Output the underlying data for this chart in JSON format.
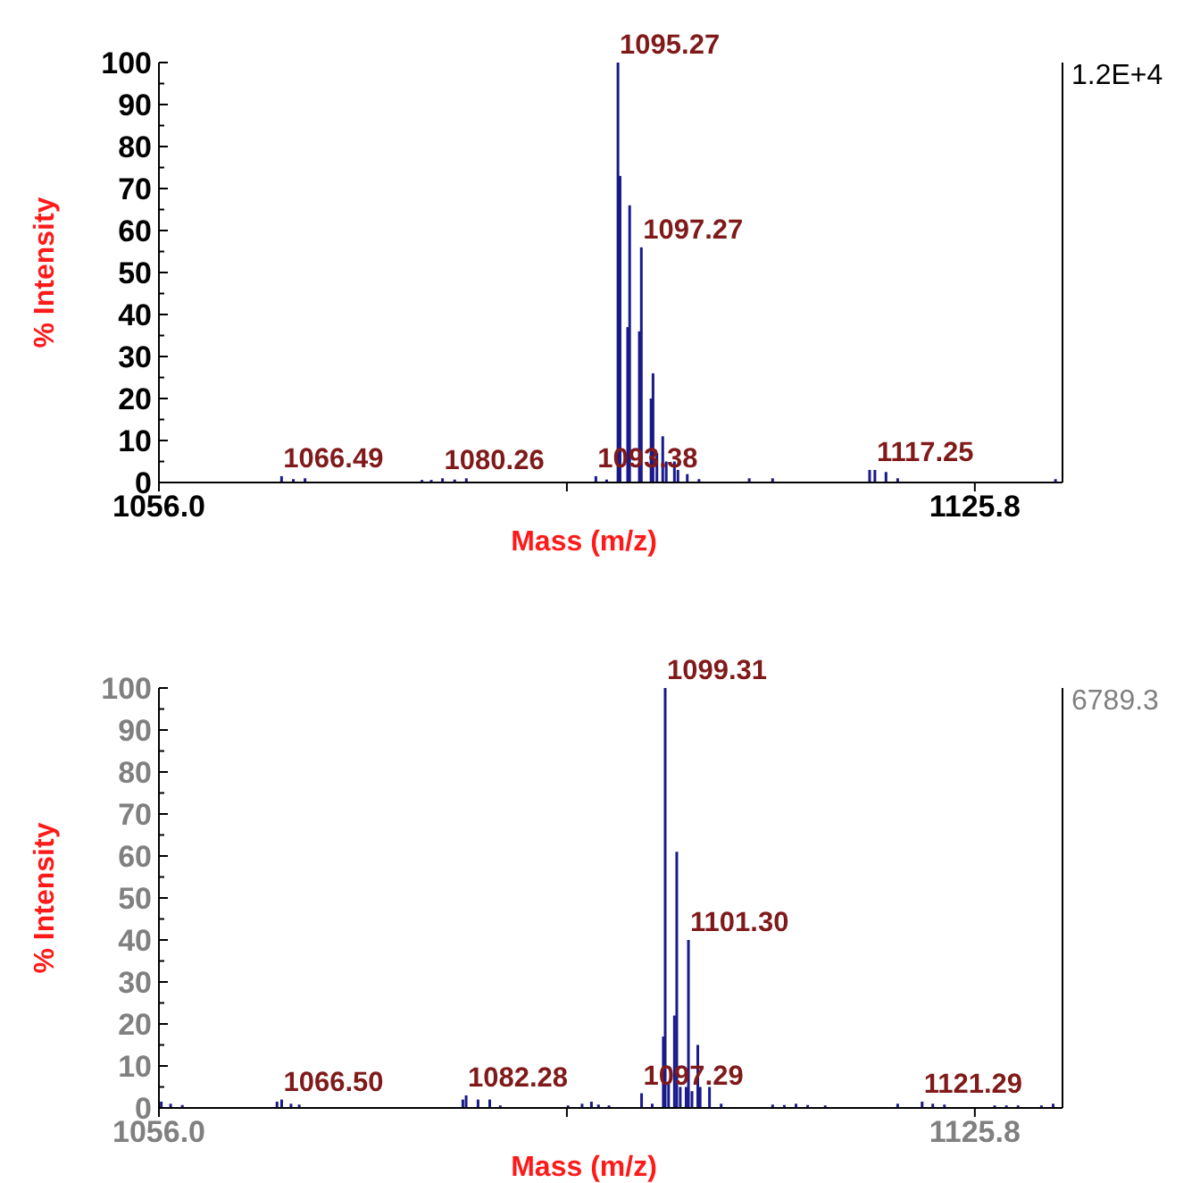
{
  "chart_data": [
    {
      "type": "bar",
      "xlabel": "Mass (m/z)",
      "ylabel": "% Intensity",
      "xlim": [
        1056.0,
        1133.3
      ],
      "ylim": [
        0,
        100
      ],
      "xticks": [
        {
          "value": 1056.0,
          "label": "1056.0"
        },
        {
          "value": 1090.9,
          "label": null
        },
        {
          "value": 1125.8,
          "label": "1125.8"
        }
      ],
      "yticks": [
        0,
        10,
        20,
        30,
        40,
        50,
        60,
        70,
        80,
        90,
        100
      ],
      "series": [
        {
          "color": "#1a1a8c",
          "x": [
            1066.49,
            1067.5,
            1068.5,
            1078.5,
            1079.3,
            1080.26,
            1081.3,
            1082.3,
            1093.38,
            1094.3,
            1095.27,
            1095.45,
            1096.1,
            1096.27,
            1097.1,
            1097.27,
            1098.1,
            1098.27,
            1098.6,
            1099.1,
            1099.4,
            1100.1,
            1100.4,
            1101.2,
            1102.2,
            1106.5,
            1108.5,
            1116.8,
            1117.25,
            1118.2,
            1119.2,
            1132.7
          ],
          "values": [
            1.5,
            0.8,
            1,
            0.6,
            0.6,
            1,
            0.7,
            1,
            1.5,
            0.7,
            100,
            73,
            37,
            66,
            36,
            56,
            20,
            26,
            7,
            11,
            5,
            5,
            3,
            2,
            0.8,
            1,
            1,
            3,
            3,
            2.5,
            1,
            0.8
          ]
        }
      ],
      "annotations": [
        "1.2E+4",
        {
          "text": "1066.49",
          "x": 1066.49,
          "y": 1.5
        },
        {
          "text": "1080.26",
          "x": 1080.26,
          "y": 1
        },
        {
          "text": "1093.38",
          "x": 1093.38,
          "y": 1.5
        },
        {
          "text": "1095.27",
          "x": 1095.27,
          "y": 100
        },
        {
          "text": "1097.27",
          "x": 1097.27,
          "y": 56
        },
        {
          "text": "1117.25",
          "x": 1117.25,
          "y": 3
        }
      ]
    },
    {
      "type": "bar",
      "xlabel": "Mass (m/z)",
      "ylabel": "% Intensity",
      "xlim": [
        1056.0,
        1133.3
      ],
      "ylim": [
        0,
        100
      ],
      "xticks": [
        {
          "value": 1056.0,
          "label": "1056.0"
        },
        {
          "value": 1090.9,
          "label": null
        },
        {
          "value": 1125.8,
          "label": "1125.8"
        }
      ],
      "yticks": [
        0,
        10,
        20,
        30,
        40,
        50,
        60,
        70,
        80,
        90,
        100
      ],
      "series": [
        {
          "color": "#1a1a8c",
          "x": [
            1056.2,
            1057.0,
            1058.0,
            1066.1,
            1066.5,
            1067.3,
            1068.0,
            1082.0,
            1082.28,
            1083.3,
            1084.3,
            1085.2,
            1091.0,
            1092.2,
            1093.0,
            1093.6,
            1094.5,
            1097.29,
            1098.2,
            1099.15,
            1099.31,
            1099.6,
            1100.1,
            1100.3,
            1100.6,
            1101.1,
            1101.3,
            1101.6,
            1102.1,
            1102.3,
            1103.1,
            1104.1,
            1108.5,
            1109.5,
            1110.5,
            1111.5,
            1113.0,
            1119.2,
            1121.29,
            1122.2,
            1123.2,
            1127.5,
            1128.5,
            1129.5,
            1131.5,
            1132.5
          ],
          "values": [
            1.5,
            1,
            0.7,
            1.5,
            2,
            1,
            0.8,
            2,
            3,
            2,
            2,
            0.6,
            0.6,
            1,
            1.5,
            0.8,
            0.6,
            3.5,
            1,
            17,
            100,
            6,
            22,
            61,
            5,
            5,
            40,
            4,
            15,
            5,
            5,
            1,
            0.8,
            0.7,
            1,
            0.7,
            0.6,
            1,
            1.5,
            1,
            0.8,
            0.6,
            0.6,
            0.6,
            0.6,
            1
          ]
        }
      ],
      "annotations": [
        "6789.3",
        {
          "text": "1066.50",
          "x": 1066.5,
          "y": 2
        },
        {
          "text": "1082.28",
          "x": 1082.28,
          "y": 3
        },
        {
          "text": "1097.29",
          "x": 1097.29,
          "y": 3.5
        },
        {
          "text": "1099.31",
          "x": 1099.31,
          "y": 100
        },
        {
          "text": "1101.30",
          "x": 1101.3,
          "y": 40
        },
        {
          "text": "1121.29",
          "x": 1121.29,
          "y": 1.5
        }
      ]
    }
  ]
}
